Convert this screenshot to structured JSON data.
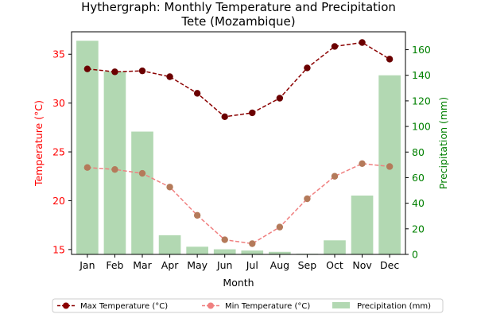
{
  "chart_data": {
    "type": "bar+line",
    "title": "Hythergraph: Monthly Temperature and Precipitation",
    "subtitle": "Tete (Mozambique)",
    "xlabel": "Month",
    "ylabel_left": "Temperature (°C)",
    "ylabel_right": "Precipitation (mm)",
    "categories": [
      "Jan",
      "Feb",
      "Mar",
      "Apr",
      "May",
      "Jun",
      "Jul",
      "Aug",
      "Sep",
      "Oct",
      "Nov",
      "Dec"
    ],
    "ylim_left": [
      14.5,
      37.3
    ],
    "ylim_right": [
      0,
      174
    ],
    "yticks_left": [
      15,
      20,
      25,
      30,
      35
    ],
    "yticks_right": [
      0,
      20,
      40,
      60,
      80,
      100,
      120,
      140,
      160
    ],
    "grid": false,
    "legend_position": "bottom-center",
    "series": [
      {
        "name": "Max Temperature (°C)",
        "type": "line",
        "axis": "left",
        "color": "#8b0000",
        "line_style": "dashed",
        "values": [
          33.5,
          33.2,
          33.3,
          32.7,
          31.0,
          28.6,
          29.0,
          30.5,
          33.6,
          35.8,
          36.2,
          34.5
        ]
      },
      {
        "name": "Min Temperature (°C)",
        "type": "line",
        "axis": "left",
        "color": "#f08080",
        "line_style": "dashed",
        "values": [
          23.4,
          23.2,
          22.8,
          21.4,
          18.5,
          16.0,
          15.6,
          17.3,
          20.2,
          22.5,
          23.8,
          23.5
        ]
      },
      {
        "name": "Precipitation (mm)",
        "type": "bar",
        "axis": "right",
        "color": "#b2d8b2",
        "values": [
          167,
          143,
          96,
          15,
          6,
          4,
          3,
          2,
          0.5,
          11,
          46,
          140
        ]
      }
    ],
    "colors": {
      "left_axis": "#ff0000",
      "right_axis": "#008000",
      "max_marker": "#6b0000",
      "min_marker": "#b47a5a"
    }
  }
}
